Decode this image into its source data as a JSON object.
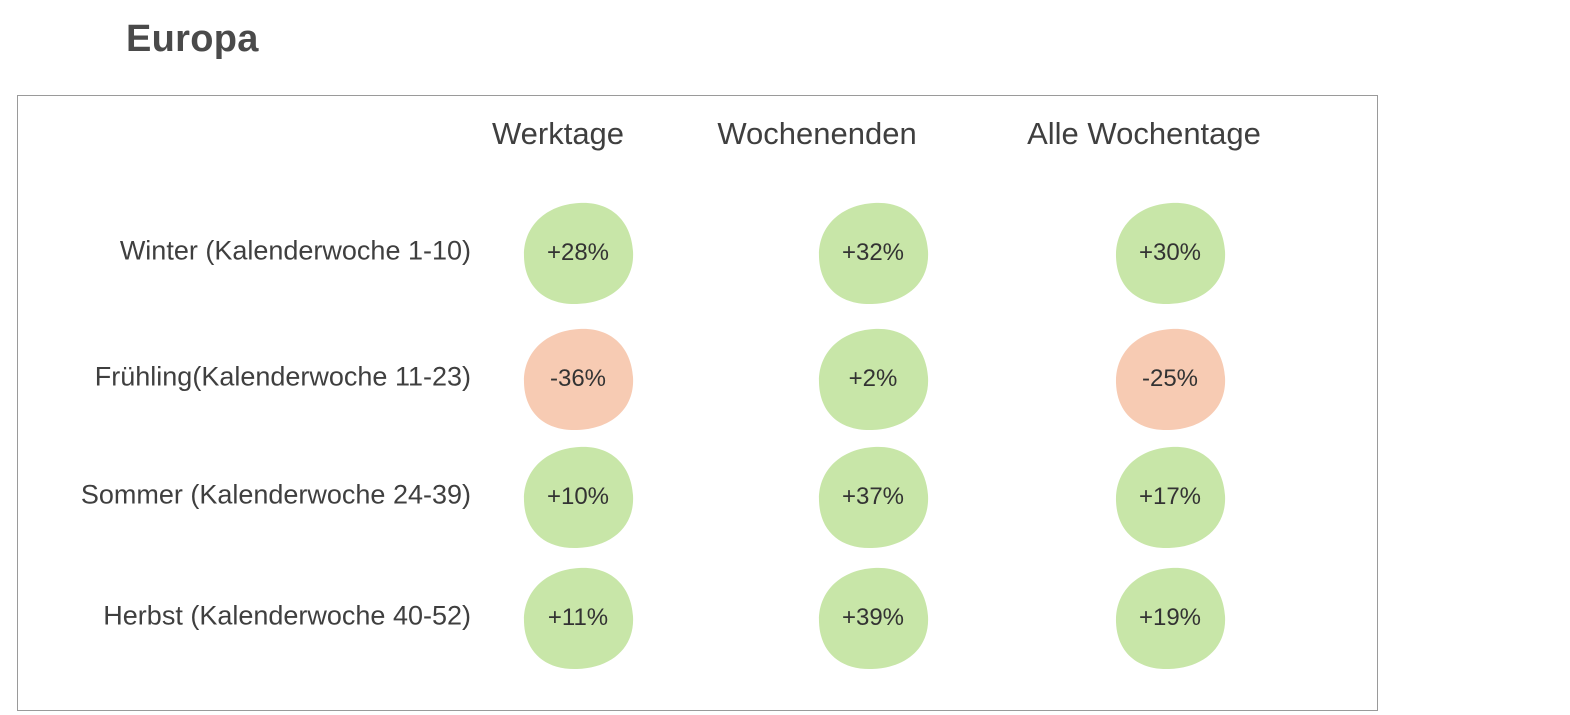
{
  "title": "Europa",
  "colors": {
    "positive": "#c8e6a8",
    "negative": "#f7cbb3",
    "border": "#9a9a9a",
    "text": "#3f3f3f"
  },
  "chart_data": {
    "type": "table",
    "title": "Europa",
    "columns": [
      "Werktage",
      "Wochenenden",
      "Alle Wochentage"
    ],
    "rows": [
      {
        "label": "Winter (Kalenderwoche 1-10)",
        "values": [
          "+28%",
          "+32%",
          "+30%"
        ]
      },
      {
        "label": "Frühling(Kalenderwoche 11-23)",
        "values": [
          "-36%",
          "+2%",
          "-25%"
        ]
      },
      {
        "label": "Sommer (Kalenderwoche 24-39)",
        "values": [
          "+10%",
          "+37%",
          "+17%"
        ]
      },
      {
        "label": "Herbst (Kalenderwoche 40-52)",
        "values": [
          "+11%",
          "+39%",
          "+19%"
        ]
      }
    ]
  }
}
